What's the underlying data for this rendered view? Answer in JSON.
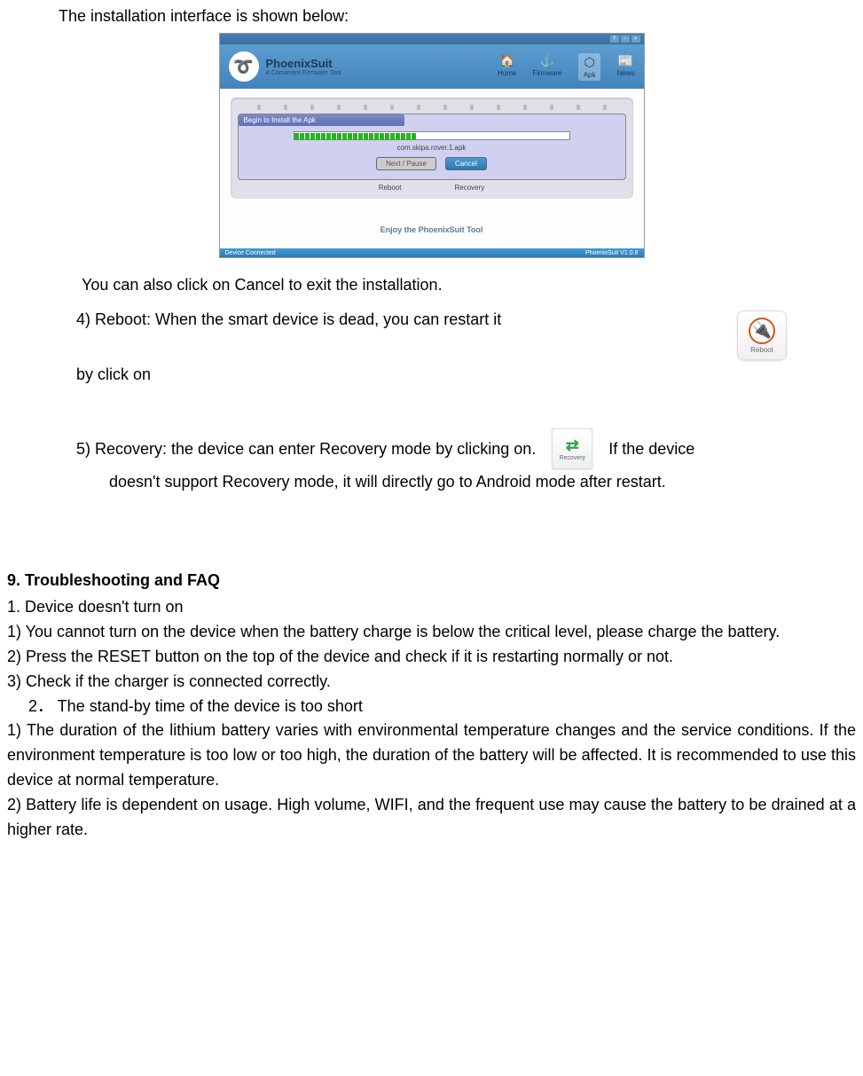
{
  "intro": "The installation interface is shown below:",
  "app": {
    "titlebar": {
      "help": "?",
      "min": "−",
      "close": "×"
    },
    "logo_title": "PhoenixSuit",
    "logo_sub": "A Convinient Firmware Tool",
    "nav": {
      "home": "Home",
      "firmware": "Firmware",
      "apk": "Apk",
      "news": "News"
    },
    "dialog": {
      "title": "Begin to Install the Apk",
      "apk_name": "com.skipa.rover.1.apk",
      "btn_pause": "Next / Pause",
      "btn_cancel": "Cancel"
    },
    "bottom_labels": {
      "reboot": "Reboot",
      "recovery": "Recovery"
    },
    "footer": "Enjoy the PhoenixSuit Tool",
    "status_left": "Device Connected",
    "status_right": "PhoenixSuit V1.0.8"
  },
  "cancel_note": "You can also click on Cancel to exit the installation.",
  "item4_text": "4)    Reboot: When the smart device is dead, you can restart it",
  "item4_continue": "by click on",
  "reboot_icon_label": "Reboot",
  "item5_pre": "5)    Recovery: the device can enter Recovery mode by clicking on.",
  "item5_post": "If the device",
  "item5_continue": "doesn't support Recovery mode, it will directly go to Android mode after restart.",
  "recovery_icon_label": "Recovery",
  "section9": "9. Troubleshooting and FAQ",
  "faq1_title": "1. Device doesn't turn on",
  "faq1_1": "1) You cannot turn on the device when the battery charge is below the critical level, please charge the battery.",
  "faq1_2": "2) Press the RESET button on the top of the device and check if it is restarting normally or not.",
  "faq1_3": "3) Check if the charger is connected correctly.",
  "faq2_title": "2．  The stand-by time of the device is too short",
  "faq2_1": "1) The duration of the lithium battery varies with environmental temperature changes and the service conditions. If the environment temperature is too low or too high, the duration of the battery will be affected. It is recommended to use this device at normal temperature.",
  "faq2_2": "2) Battery life is dependent on usage. High volume, WIFI, and the frequent use may cause the battery to be drained at a higher rate.",
  "colors": {
    "header_bg": "#4183bb",
    "progress_green": "#2ab02a",
    "dialog_bg": "#d0d0f0",
    "accent_orange": "#d05a1a",
    "accent_green": "#3aa04a"
  }
}
